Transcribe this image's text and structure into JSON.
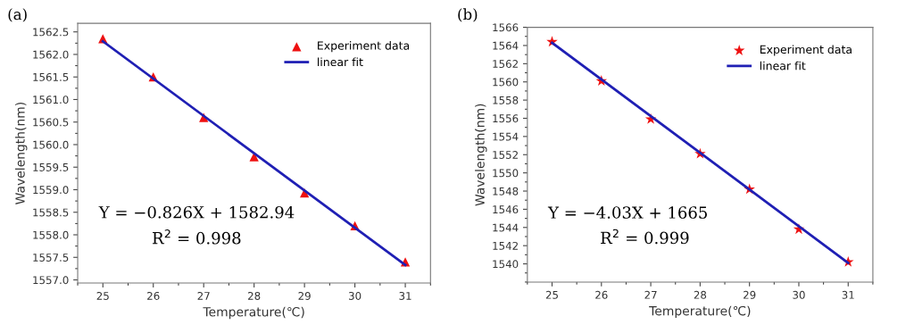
{
  "chart_data": [
    {
      "type": "scatter",
      "title": "(a)",
      "xlabel": "Temperature(℃)",
      "ylabel": "Wavelength(nm)",
      "xlim": [
        24.5,
        31.5
      ],
      "xticks": [
        25,
        26,
        27,
        28,
        29,
        30,
        31
      ],
      "ylim": [
        1556.93,
        1562.69
      ],
      "yticks": [
        {
          "value": 1557.0,
          "label": "1557.0"
        },
        {
          "value": 1557.5,
          "label": "1557.5"
        },
        {
          "value": 1558.0,
          "label": "1558.0"
        },
        {
          "value": 1558.5,
          "label": "1558.5"
        },
        {
          "value": 1559.0,
          "label": "1559.0"
        },
        {
          "value": 1559.5,
          "label": "1559.5"
        },
        {
          "value": 1560.0,
          "label": "1560.0"
        },
        {
          "value": 1560.5,
          "label": "1560.5"
        },
        {
          "value": 1561.0,
          "label": "1561.0"
        },
        {
          "value": 1561.5,
          "label": "1561.5"
        },
        {
          "value": 1562.0,
          "label": "1562.0"
        },
        {
          "value": 1562.5,
          "label": "1562.5"
        }
      ],
      "grid": false,
      "legend": "top right",
      "series": [
        {
          "name": "Experiment data",
          "marker": "triangle",
          "color": "#ee1111",
          "x": [
            25,
            26,
            27,
            28,
            29,
            30,
            31
          ],
          "values": [
            1562.35,
            1561.5,
            1560.6,
            1559.73,
            1558.93,
            1558.2,
            1557.4
          ]
        },
        {
          "name": "linear fit",
          "type": "line",
          "color": "#1f1fb4",
          "x": [
            25,
            31
          ],
          "values": [
            1562.29,
            1557.33
          ]
        }
      ],
      "annotations": [
        "Y = −0.826X + 1582.94",
        "R$^{2}$ = 0.998"
      ]
    },
    {
      "type": "scatter",
      "title": "(b)",
      "xlabel": "Temperature(℃)",
      "ylabel": "Wavelength(nm)",
      "xlim": [
        24.5,
        31.5
      ],
      "xticks": [
        25,
        26,
        27,
        28,
        29,
        30,
        31
      ],
      "ylim": [
        1538,
        1566
      ],
      "yticks": [
        1540,
        1542,
        1544,
        1546,
        1548,
        1550,
        1552,
        1554,
        1556,
        1558,
        1560,
        1562,
        1564,
        1566
      ],
      "grid": false,
      "legend": "top right",
      "series": [
        {
          "name": "Experiment data",
          "marker": "star",
          "color": "#ee1111",
          "x": [
            25,
            26,
            27,
            28,
            29,
            30,
            31
          ],
          "values": [
            1564.4,
            1560.1,
            1555.9,
            1552.1,
            1548.2,
            1543.8,
            1540.2
          ]
        },
        {
          "name": "linear fit",
          "type": "line",
          "color": "#1f1fb4",
          "x": [
            25,
            31
          ],
          "values": [
            1564.3,
            1540.1
          ]
        }
      ],
      "annotations": [
        "Y = −4.03X + 1665",
        "R$^{2}$ = 0.999"
      ]
    }
  ]
}
